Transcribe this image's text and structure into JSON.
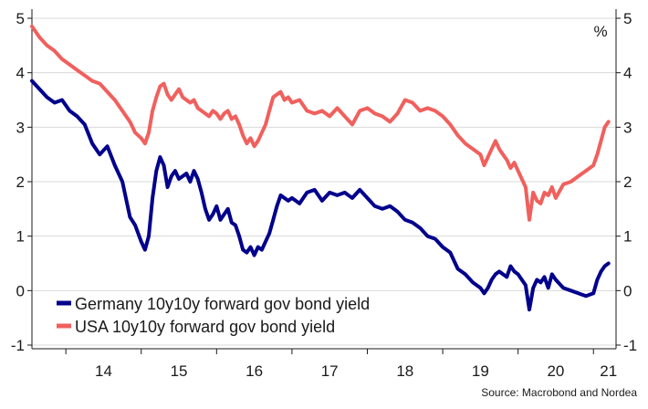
{
  "chart_data": {
    "type": "line",
    "unit_label": "%",
    "source": "Source: Macrobond and Nordea",
    "ylim": [
      -1,
      5
    ],
    "yticks_left": [
      "-1",
      "0",
      "1",
      "2",
      "3",
      "4",
      "5"
    ],
    "yticks_right": [
      "-1",
      "0",
      "1",
      "2",
      "3",
      "4",
      "5"
    ],
    "xlim": [
      2013.55,
      2021.3
    ],
    "xtick_labels": [
      "14",
      "15",
      "16",
      "17",
      "18",
      "19",
      "20",
      "21"
    ],
    "xtick_positions": [
      2014.5,
      2015.5,
      2016.5,
      2017.5,
      2018.5,
      2019.5,
      2020.5,
      2021.2
    ],
    "grid": "horizontal",
    "legend_position": "bottom-left",
    "series": [
      {
        "name": "Germany 10y10y forward gov bond yield",
        "color": "#00008c",
        "x": [
          2013.55,
          2013.65,
          2013.75,
          2013.85,
          2013.95,
          2014.05,
          2014.15,
          2014.25,
          2014.35,
          2014.45,
          2014.55,
          2014.65,
          2014.75,
          2014.85,
          2014.92,
          2015.0,
          2015.05,
          2015.1,
          2015.15,
          2015.2,
          2015.25,
          2015.3,
          2015.35,
          2015.4,
          2015.45,
          2015.5,
          2015.55,
          2015.6,
          2015.65,
          2015.7,
          2015.75,
          2015.8,
          2015.85,
          2015.9,
          2015.95,
          2016.0,
          2016.05,
          2016.1,
          2016.15,
          2016.2,
          2016.25,
          2016.3,
          2016.35,
          2016.4,
          2016.45,
          2016.5,
          2016.55,
          2016.6,
          2016.65,
          2016.7,
          2016.75,
          2016.8,
          2016.85,
          2016.9,
          2016.95,
          2017.0,
          2017.1,
          2017.2,
          2017.3,
          2017.4,
          2017.5,
          2017.6,
          2017.7,
          2017.8,
          2017.9,
          2018.0,
          2018.1,
          2018.2,
          2018.3,
          2018.4,
          2018.5,
          2018.6,
          2018.7,
          2018.8,
          2018.9,
          2019.0,
          2019.1,
          2019.2,
          2019.3,
          2019.4,
          2019.5,
          2019.55,
          2019.6,
          2019.65,
          2019.7,
          2019.75,
          2019.8,
          2019.85,
          2019.9,
          2019.95,
          2020.0,
          2020.1,
          2020.15,
          2020.2,
          2020.25,
          2020.3,
          2020.35,
          2020.4,
          2020.45,
          2020.5,
          2020.6,
          2020.7,
          2020.8,
          2020.9,
          2021.0,
          2021.05,
          2021.1,
          2021.15,
          2021.2
        ],
        "values": [
          3.85,
          3.7,
          3.55,
          3.45,
          3.5,
          3.3,
          3.2,
          3.05,
          2.7,
          2.5,
          2.65,
          2.3,
          2.0,
          1.35,
          1.2,
          0.9,
          0.75,
          1.0,
          1.7,
          2.2,
          2.45,
          2.3,
          1.9,
          2.1,
          2.2,
          2.05,
          2.1,
          2.15,
          2.0,
          2.2,
          2.05,
          1.8,
          1.5,
          1.3,
          1.4,
          1.55,
          1.3,
          1.4,
          1.5,
          1.25,
          1.2,
          1.0,
          0.75,
          0.7,
          0.8,
          0.65,
          0.8,
          0.75,
          0.9,
          1.05,
          1.3,
          1.55,
          1.75,
          1.7,
          1.65,
          1.7,
          1.6,
          1.8,
          1.85,
          1.65,
          1.8,
          1.75,
          1.8,
          1.7,
          1.85,
          1.7,
          1.55,
          1.5,
          1.55,
          1.45,
          1.3,
          1.25,
          1.15,
          1.0,
          0.95,
          0.8,
          0.7,
          0.4,
          0.3,
          0.15,
          0.05,
          -0.05,
          0.05,
          0.2,
          0.3,
          0.35,
          0.3,
          0.25,
          0.45,
          0.35,
          0.3,
          0.1,
          -0.35,
          0.05,
          0.2,
          0.15,
          0.25,
          0.05,
          0.3,
          0.2,
          0.05,
          0.0,
          -0.05,
          -0.1,
          -0.05,
          0.2,
          0.35,
          0.45,
          0.5
        ]
      },
      {
        "name": "USA 10y10y forward gov bond yield",
        "color": "#f0605d",
        "x": [
          2013.55,
          2013.65,
          2013.75,
          2013.85,
          2013.95,
          2014.05,
          2014.15,
          2014.25,
          2014.35,
          2014.45,
          2014.55,
          2014.65,
          2014.75,
          2014.85,
          2014.92,
          2015.0,
          2015.05,
          2015.1,
          2015.15,
          2015.2,
          2015.25,
          2015.3,
          2015.35,
          2015.4,
          2015.45,
          2015.5,
          2015.55,
          2015.6,
          2015.65,
          2015.7,
          2015.75,
          2015.8,
          2015.85,
          2015.9,
          2015.95,
          2016.0,
          2016.05,
          2016.1,
          2016.15,
          2016.2,
          2016.25,
          2016.3,
          2016.35,
          2016.4,
          2016.45,
          2016.5,
          2016.55,
          2016.6,
          2016.65,
          2016.7,
          2016.75,
          2016.8,
          2016.85,
          2016.9,
          2016.95,
          2017.0,
          2017.1,
          2017.2,
          2017.3,
          2017.4,
          2017.5,
          2017.6,
          2017.7,
          2017.8,
          2017.9,
          2018.0,
          2018.1,
          2018.2,
          2018.3,
          2018.4,
          2018.5,
          2018.6,
          2018.7,
          2018.8,
          2018.9,
          2019.0,
          2019.1,
          2019.2,
          2019.3,
          2019.4,
          2019.5,
          2019.55,
          2019.6,
          2019.65,
          2019.7,
          2019.75,
          2019.8,
          2019.85,
          2019.9,
          2019.95,
          2020.0,
          2020.1,
          2020.15,
          2020.2,
          2020.25,
          2020.3,
          2020.35,
          2020.4,
          2020.45,
          2020.5,
          2020.6,
          2020.7,
          2020.8,
          2020.9,
          2021.0,
          2021.05,
          2021.1,
          2021.15,
          2021.2
        ],
        "values": [
          4.85,
          4.65,
          4.5,
          4.4,
          4.25,
          4.15,
          4.05,
          3.95,
          3.85,
          3.8,
          3.65,
          3.5,
          3.3,
          3.1,
          2.9,
          2.8,
          2.7,
          2.9,
          3.3,
          3.55,
          3.75,
          3.8,
          3.6,
          3.5,
          3.6,
          3.7,
          3.55,
          3.5,
          3.45,
          3.5,
          3.35,
          3.3,
          3.25,
          3.2,
          3.3,
          3.25,
          3.15,
          3.25,
          3.3,
          3.15,
          3.2,
          3.05,
          2.85,
          2.7,
          2.8,
          2.65,
          2.75,
          2.9,
          3.05,
          3.3,
          3.55,
          3.6,
          3.65,
          3.5,
          3.55,
          3.45,
          3.5,
          3.3,
          3.25,
          3.3,
          3.2,
          3.35,
          3.2,
          3.05,
          3.3,
          3.35,
          3.25,
          3.2,
          3.1,
          3.25,
          3.5,
          3.45,
          3.3,
          3.35,
          3.3,
          3.2,
          3.05,
          2.85,
          2.7,
          2.6,
          2.5,
          2.3,
          2.45,
          2.6,
          2.75,
          2.6,
          2.5,
          2.4,
          2.25,
          2.35,
          2.2,
          1.9,
          1.3,
          1.8,
          1.65,
          1.6,
          1.8,
          1.75,
          1.9,
          1.7,
          1.95,
          2.0,
          2.1,
          2.2,
          2.3,
          2.5,
          2.75,
          3.0,
          3.1
        ]
      }
    ]
  }
}
